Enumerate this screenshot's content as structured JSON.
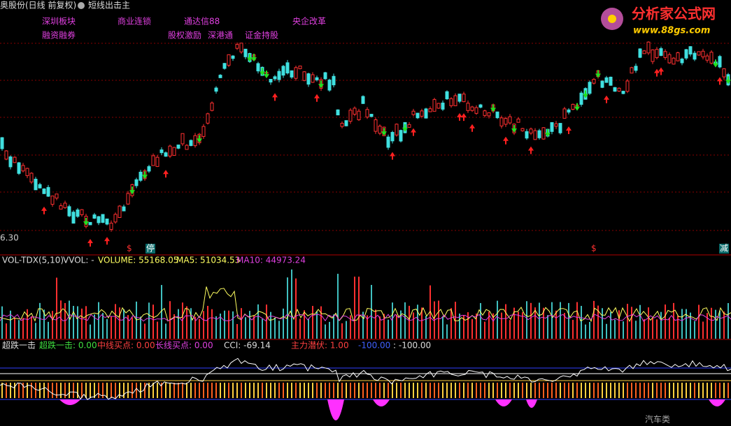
{
  "header": {
    "title": "奥股份(日线 前复权)",
    "formula": "短线出击主"
  },
  "logo": {
    "name": "分析家公式网",
    "url": "www.88gs.com"
  },
  "concepts": {
    "row1": [
      "深圳板块",
      "商业连锁",
      "通达信88",
      "央企改革"
    ],
    "row2": [
      "融资融券",
      "股权激励",
      "深港通",
      "证金持股"
    ]
  },
  "price_panel": {
    "low_label": "6.30",
    "markers": [
      "$",
      "停",
      "$",
      "减"
    ]
  },
  "volume_panel": {
    "name": "VOL-TDX(5,10)",
    "vvol": "VVOL: -",
    "volume": "VOLUME: 55168.05",
    "ma5": "MA5: 51034.53",
    "ma10": "MA10: 44973.24"
  },
  "indicator_panel": {
    "name": "超跌一击",
    "items": [
      "超跌一击: 0.00",
      "中线买点: 0.00",
      "长线买点: 0.00",
      "CCI: -69.14",
      "主力潜伏: 1.00",
      "-100.00",
      ": -100.00"
    ],
    "sector": "汽车类"
  }
}
